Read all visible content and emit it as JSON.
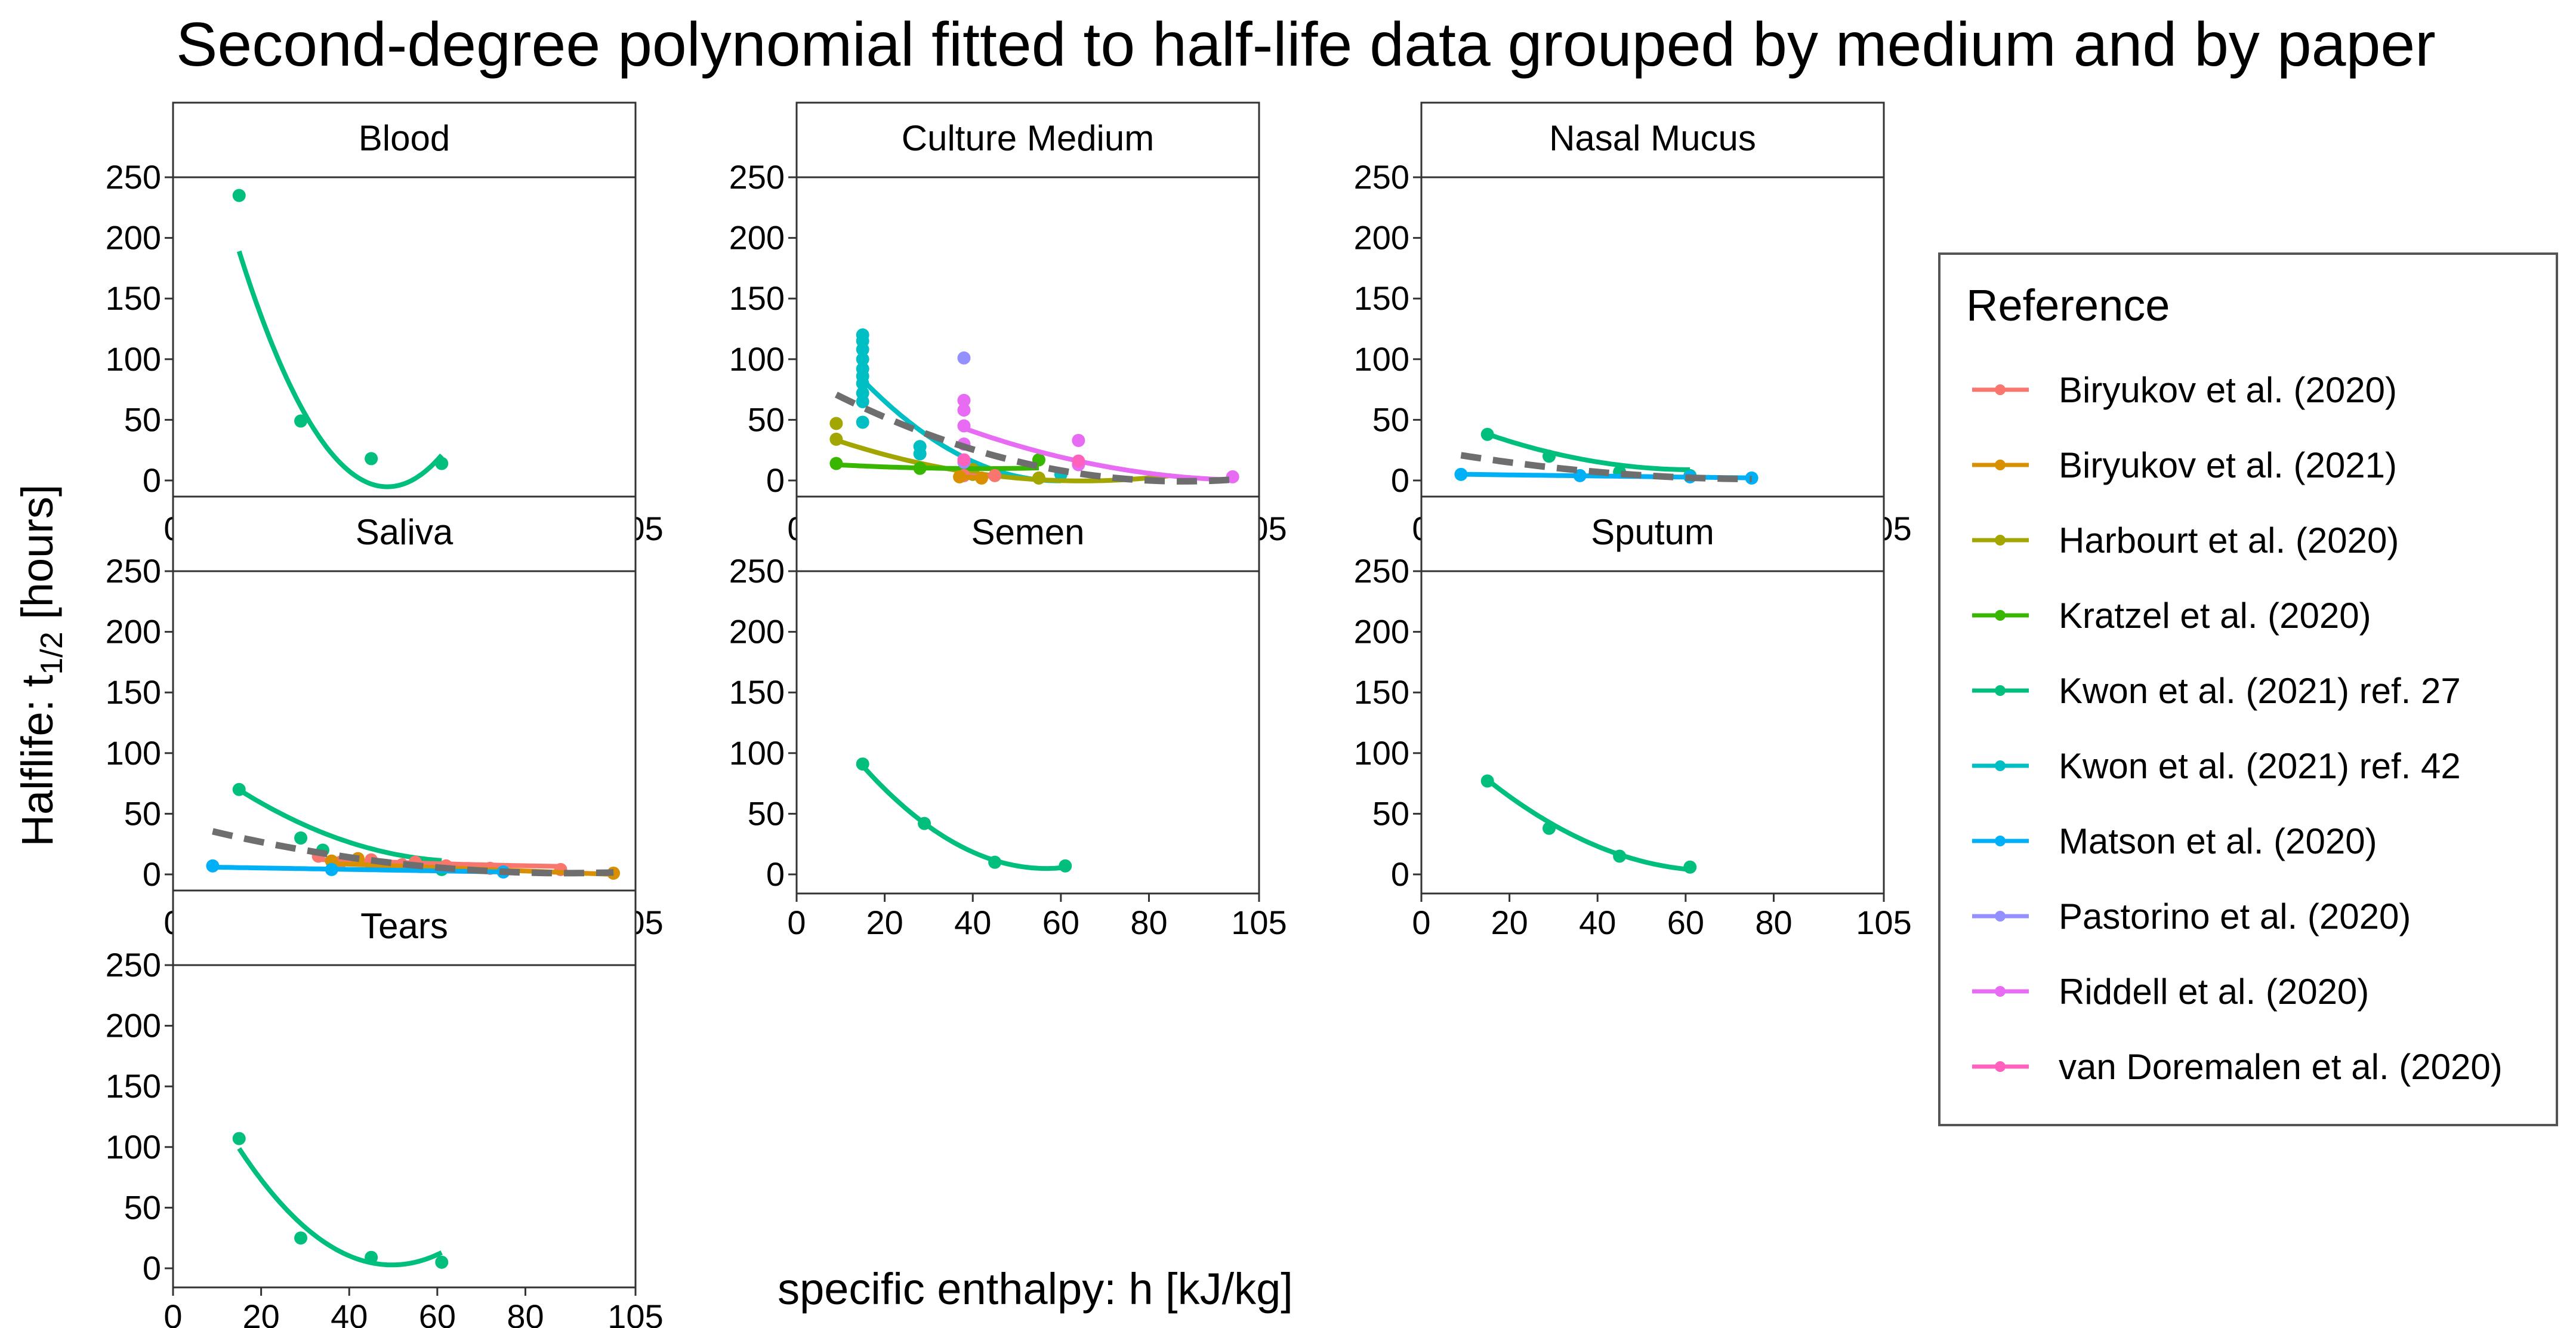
{
  "chart_data": {
    "type": "line",
    "title": "Second-degree polynomial fitted to half-life data grouped by medium and by paper",
    "xlabel": "specific enthalpy: h [kJ/kg]",
    "ylabel_prefix": "Halflife:  t",
    "ylabel_sub": "1/2",
    "ylabel_suffix": " [hours]",
    "x_ticks": [
      0,
      20,
      40,
      60,
      80,
      105
    ],
    "y_ticks": [
      0,
      50,
      100,
      150,
      200,
      250
    ],
    "xlim": [
      0,
      105
    ],
    "ylim": [
      0,
      250
    ],
    "legend": {
      "title": "Reference",
      "entries": [
        {
          "name": "Biryukov et al. (2020)",
          "color": "#F8766D"
        },
        {
          "name": "Biryukov et al. (2021)",
          "color": "#D89000"
        },
        {
          "name": "Harbourt et al. (2020)",
          "color": "#A3A500"
        },
        {
          "name": "Kratzel et al. (2020)",
          "color": "#39B600"
        },
        {
          "name": "Kwon et al. (2021) ref. 27",
          "color": "#00BF7D"
        },
        {
          "name": "Kwon et al. (2021) ref. 42",
          "color": "#00BFC4"
        },
        {
          "name": "Matson et al. (2020)",
          "color": "#00B0F6"
        },
        {
          "name": "Pastorino et al. (2020)",
          "color": "#9590FF"
        },
        {
          "name": "Riddell et al. (2020)",
          "color": "#E76BF3"
        },
        {
          "name": "van Doremalen et al. (2020)",
          "color": "#FF62BC"
        }
      ]
    },
    "dashed_color": "#6E6E6E",
    "panels": [
      {
        "name": "Blood",
        "series": [
          {
            "ref": "Kwon et al. (2021) ref. 27",
            "points": [
              [
                15,
                235
              ],
              [
                29,
                49
              ],
              [
                45,
                18
              ],
              [
                61,
                14
              ]
            ],
            "fit": [
              15,
              61
            ],
            "coef": [
              400.6,
              -16.68,
              0.1714
            ]
          }
        ]
      },
      {
        "name": "Culture Medium",
        "dashed": {
          "fit": [
            9,
            99
          ],
          "coef": [
            88,
            -2.02,
            0.0115
          ]
        },
        "series": [
          {
            "ref": "Kwon et al. (2021) ref. 42",
            "points": [
              [
                15,
                120
              ],
              [
                15,
                115
              ],
              [
                15,
                108
              ],
              [
                15,
                100
              ],
              [
                15,
                92
              ],
              [
                15,
                86
              ],
              [
                15,
                80
              ],
              [
                15,
                72
              ],
              [
                15,
                65
              ],
              [
                15,
                48
              ],
              [
                28,
                22
              ],
              [
                28,
                28
              ],
              [
                60,
                5
              ]
            ],
            "fit": [
              15,
              60
            ],
            "coef": [
              148.5,
              -5.0,
              0.042
            ]
          },
          {
            "ref": "Harbourt et al. (2020)",
            "points": [
              [
                9,
                47
              ],
              [
                9,
                34
              ],
              [
                40,
                5
              ],
              [
                40,
                9
              ],
              [
                55,
                2
              ]
            ],
            "fit": [
              9,
              85
            ],
            "coef": [
              45,
              -1.4,
              0.0108
            ]
          },
          {
            "ref": "Kratzel et al. (2020)",
            "points": [
              [
                9,
                14
              ],
              [
                28,
                10
              ],
              [
                55,
                17
              ]
            ],
            "fit": [
              9,
              55
            ],
            "coef": [
              15,
              -0.25,
              0.003
            ]
          },
          {
            "ref": "Biryukov et al. (2020)",
            "points": [
              [
                38,
                4
              ],
              [
                45,
                4
              ]
            ],
            "fit": [
              38,
              45
            ],
            "coef": [
              8,
              -0.1,
              0
            ]
          },
          {
            "ref": "Biryukov et al. (2021)",
            "points": [
              [
                37,
                3
              ],
              [
                42,
                2
              ]
            ],
            "fit": [
              37,
              42
            ],
            "coef": [
              5,
              -0.06,
              0
            ]
          },
          {
            "ref": "Pastorino et al. (2020)",
            "points": [
              [
                38,
                101
              ],
              [
                38,
                15
              ]
            ],
            "fit": null,
            "coef": null
          },
          {
            "ref": "Riddell et al. (2020)",
            "points": [
              [
                38,
                66
              ],
              [
                38,
                58
              ],
              [
                38,
                45
              ],
              [
                38,
                30
              ],
              [
                64,
                33
              ],
              [
                64,
                13
              ],
              [
                99,
                3
              ]
            ],
            "fit": [
              38,
              99
            ],
            "coef": [
              106.4,
              -2.04,
              0.0098
            ]
          },
          {
            "ref": "van Doremalen et al. (2020)",
            "points": [
              [
                38,
                17
              ],
              [
                64,
                16
              ]
            ],
            "fit": null,
            "coef": null
          }
        ]
      },
      {
        "name": "Nasal Mucus",
        "dashed": {
          "fit": [
            9,
            75
          ],
          "coef": [
            26.3,
            -0.65,
            0.0042
          ]
        },
        "series": [
          {
            "ref": "Kwon et al. (2021) ref. 27",
            "points": [
              [
                15,
                38
              ],
              [
                29,
                20
              ],
              [
                45,
                7
              ],
              [
                61,
                4
              ]
            ],
            "fit": [
              15,
              61
            ],
            "coef": [
              60,
              -1.65,
              0.0133
            ]
          },
          {
            "ref": "Matson et al. (2020)",
            "points": [
              [
                9,
                5
              ],
              [
                36,
                4
              ],
              [
                61,
                3
              ],
              [
                75,
                2
              ]
            ],
            "fit": [
              9,
              75
            ],
            "coef": [
              5.5,
              -0.045,
              0
            ]
          }
        ]
      },
      {
        "name": "Saliva",
        "dashed": {
          "fit": [
            9,
            100
          ],
          "coef": [
            43.6,
            -0.95,
            0.0053
          ]
        },
        "series": [
          {
            "ref": "Kwon et al. (2021) ref. 27",
            "points": [
              [
                15,
                70
              ],
              [
                29,
                30
              ],
              [
                34,
                20
              ],
              [
                45,
                8
              ],
              [
                61,
                4
              ]
            ],
            "fit": [
              15,
              61
            ],
            "coef": [
              108.9,
              -2.94,
              0.022
            ]
          },
          {
            "ref": "Biryukov et al. (2020)",
            "points": [
              [
                33,
                15
              ],
              [
                38,
                10
              ],
              [
                45,
                12
              ],
              [
                52,
                8
              ],
              [
                55,
                10
              ],
              [
                62,
                7
              ],
              [
                72,
                5
              ],
              [
                88,
                4
              ]
            ],
            "fit": [
              33,
              88
            ],
            "coef": [
              18,
              -0.2,
              0.0008
            ]
          },
          {
            "ref": "Biryukov et al. (2021)",
            "points": [
              [
                36,
                11
              ],
              [
                42,
                13
              ],
              [
                100,
                1
              ]
            ],
            "fit": [
              36,
              100
            ],
            "coef": [
              14,
              -0.14,
              0
            ]
          },
          {
            "ref": "Matson et al. (2020)",
            "points": [
              [
                9,
                7
              ],
              [
                36,
                4
              ],
              [
                75,
                2
              ]
            ],
            "fit": [
              9,
              75
            ],
            "coef": [
              6.5,
              -0.06,
              0
            ]
          }
        ]
      },
      {
        "name": "Semen",
        "series": [
          {
            "ref": "Kwon et al. (2021) ref. 27",
            "points": [
              [
                15,
                91
              ],
              [
                29,
                42
              ],
              [
                45,
                10
              ],
              [
                61,
                7
              ]
            ],
            "fit": [
              15,
              61
            ],
            "coef": [
              161.3,
              -5.52,
              0.0487
            ]
          }
        ]
      },
      {
        "name": "Sputum",
        "series": [
          {
            "ref": "Kwon et al. (2021) ref. 27",
            "points": [
              [
                15,
                77
              ],
              [
                29,
                38
              ],
              [
                45,
                15
              ],
              [
                61,
                6
              ]
            ],
            "fit": [
              15,
              61
            ],
            "coef": [
              127.7,
              -3.73,
              0.0279
            ]
          }
        ]
      },
      {
        "name": "Tears",
        "series": [
          {
            "ref": "Kwon et al. (2021) ref. 27",
            "points": [
              [
                15,
                107
              ],
              [
                29,
                25
              ],
              [
                45,
                9
              ],
              [
                61,
                5
              ]
            ],
            "fit": [
              15,
              61
            ],
            "coef": [
              199.8,
              -7.93,
              0.0798
            ]
          }
        ]
      }
    ]
  }
}
